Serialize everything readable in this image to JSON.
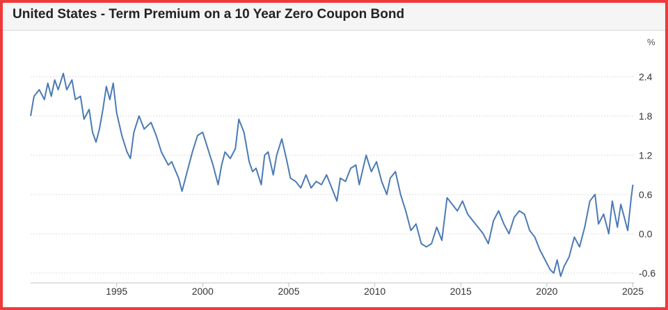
{
  "header": {
    "title": "United States - Term Premium on a 10 Year Zero Coupon Bond"
  },
  "chart_data": {
    "type": "line",
    "title": "United States - Term Premium on a 10 Year Zero Coupon Bond",
    "xlabel": "",
    "ylabel": "",
    "unit": "%",
    "xlim": [
      1990.0,
      2025.1
    ],
    "ylim": [
      -0.75,
      2.7
    ],
    "x_ticks": [
      1995,
      2000,
      2005,
      2010,
      2015,
      2020,
      2025
    ],
    "y_ticks": [
      -0.6,
      0.0,
      0.6,
      1.2,
      1.8,
      2.4
    ],
    "y_tick_labels": [
      "-0.6",
      "0.0",
      "0.6",
      "1.2",
      "1.8",
      "2.4"
    ],
    "grid": "horizontal dotted",
    "colors": {
      "line": "#4a7ab5",
      "grid": "#dddddd",
      "frame": "#ee3a3a"
    },
    "series": [
      {
        "x": [
          1990.0,
          1990.2,
          1990.5,
          1990.8,
          1991.0,
          1991.2,
          1991.4,
          1991.6,
          1991.9,
          1992.1,
          1992.4,
          1992.6,
          1992.9,
          1993.1,
          1993.4,
          1993.6,
          1993.8,
          1994.0,
          1994.2,
          1994.4,
          1994.6,
          1994.8,
          1995.0,
          1995.3,
          1995.6,
          1995.8,
          1996.0,
          1996.3,
          1996.6,
          1997.0,
          1997.3,
          1997.6,
          1998.0,
          1998.2,
          1998.6,
          1998.8,
          1999.1,
          1999.4,
          1999.7,
          2000.0,
          2000.3,
          2000.6,
          2000.9,
          2001.1,
          2001.3,
          2001.6,
          2001.9,
          2002.1,
          2002.4,
          2002.7,
          2002.9,
          2003.1,
          2003.4,
          2003.6,
          2003.8,
          2004.1,
          2004.3,
          2004.6,
          2004.9,
          2005.1,
          2005.4,
          2005.7,
          2006.0,
          2006.3,
          2006.6,
          2006.9,
          2007.2,
          2007.5,
          2007.8,
          2008.0,
          2008.3,
          2008.6,
          2008.9,
          2009.1,
          2009.5,
          2009.8,
          2010.1,
          2010.4,
          2010.7,
          2010.9,
          2011.2,
          2011.5,
          2011.8,
          2012.1,
          2012.4,
          2012.7,
          2013.0,
          2013.3,
          2013.6,
          2013.9,
          2014.2,
          2014.5,
          2014.8,
          2015.1,
          2015.4,
          2015.7,
          2016.0,
          2016.3,
          2016.6,
          2016.9,
          2017.2,
          2017.5,
          2017.8,
          2018.1,
          2018.4,
          2018.7,
          2019.0,
          2019.3,
          2019.6,
          2019.9,
          2020.2,
          2020.4,
          2020.6,
          2020.8,
          2021.0,
          2021.3,
          2021.6,
          2021.9,
          2022.2,
          2022.5,
          2022.8,
          2023.0,
          2023.3,
          2023.6,
          2023.8,
          2024.1,
          2024.3,
          2024.5,
          2024.7,
          2024.9,
          2025.0
        ],
        "values": [
          1.8,
          2.1,
          2.2,
          2.05,
          2.3,
          2.1,
          2.35,
          2.2,
          2.45,
          2.2,
          2.35,
          2.05,
          2.1,
          1.75,
          1.9,
          1.55,
          1.4,
          1.6,
          1.9,
          2.25,
          2.05,
          2.3,
          1.85,
          1.5,
          1.25,
          1.15,
          1.55,
          1.8,
          1.6,
          1.7,
          1.5,
          1.25,
          1.05,
          1.1,
          0.85,
          0.65,
          0.95,
          1.25,
          1.5,
          1.55,
          1.3,
          1.05,
          0.75,
          1.05,
          1.25,
          1.15,
          1.3,
          1.75,
          1.55,
          1.1,
          0.95,
          1.0,
          0.75,
          1.2,
          1.25,
          0.9,
          1.2,
          1.45,
          1.1,
          0.85,
          0.8,
          0.7,
          0.9,
          0.7,
          0.8,
          0.75,
          0.9,
          0.7,
          0.5,
          0.85,
          0.8,
          1.0,
          1.05,
          0.75,
          1.2,
          0.95,
          1.1,
          0.8,
          0.6,
          0.85,
          0.95,
          0.6,
          0.35,
          0.05,
          0.15,
          -0.15,
          -0.2,
          -0.15,
          0.1,
          -0.1,
          0.55,
          0.45,
          0.35,
          0.5,
          0.3,
          0.2,
          0.1,
          0.0,
          -0.15,
          0.2,
          0.35,
          0.15,
          0.0,
          0.25,
          0.35,
          0.3,
          0.05,
          -0.05,
          -0.25,
          -0.4,
          -0.55,
          -0.6,
          -0.4,
          -0.65,
          -0.5,
          -0.35,
          -0.05,
          -0.2,
          0.1,
          0.5,
          0.6,
          0.15,
          0.3,
          0.0,
          0.5,
          0.1,
          0.45,
          0.25,
          0.05,
          0.55,
          0.75
        ]
      }
    ]
  }
}
